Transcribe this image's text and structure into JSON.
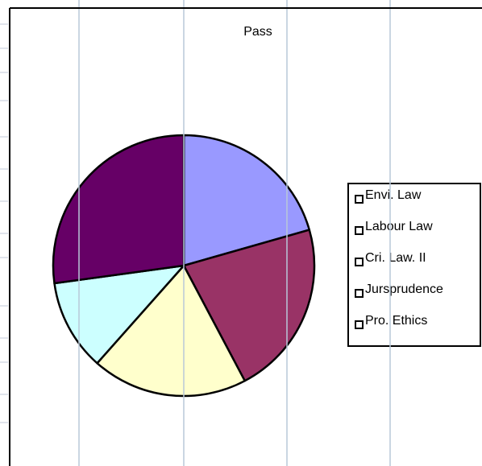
{
  "chart_data": {
    "type": "pie",
    "title": "Pass",
    "categories": [
      "Envi. Law",
      "Labour Law",
      "Cri. Law. II",
      "Jursprudence",
      "Pro. Ethics"
    ],
    "values": [
      20.6,
      21.7,
      19.3,
      11.3,
      27.2
    ],
    "colors": [
      "#9999ff",
      "#993366",
      "#ffffcc",
      "#ccffff",
      "#660066"
    ],
    "legend": "right"
  }
}
